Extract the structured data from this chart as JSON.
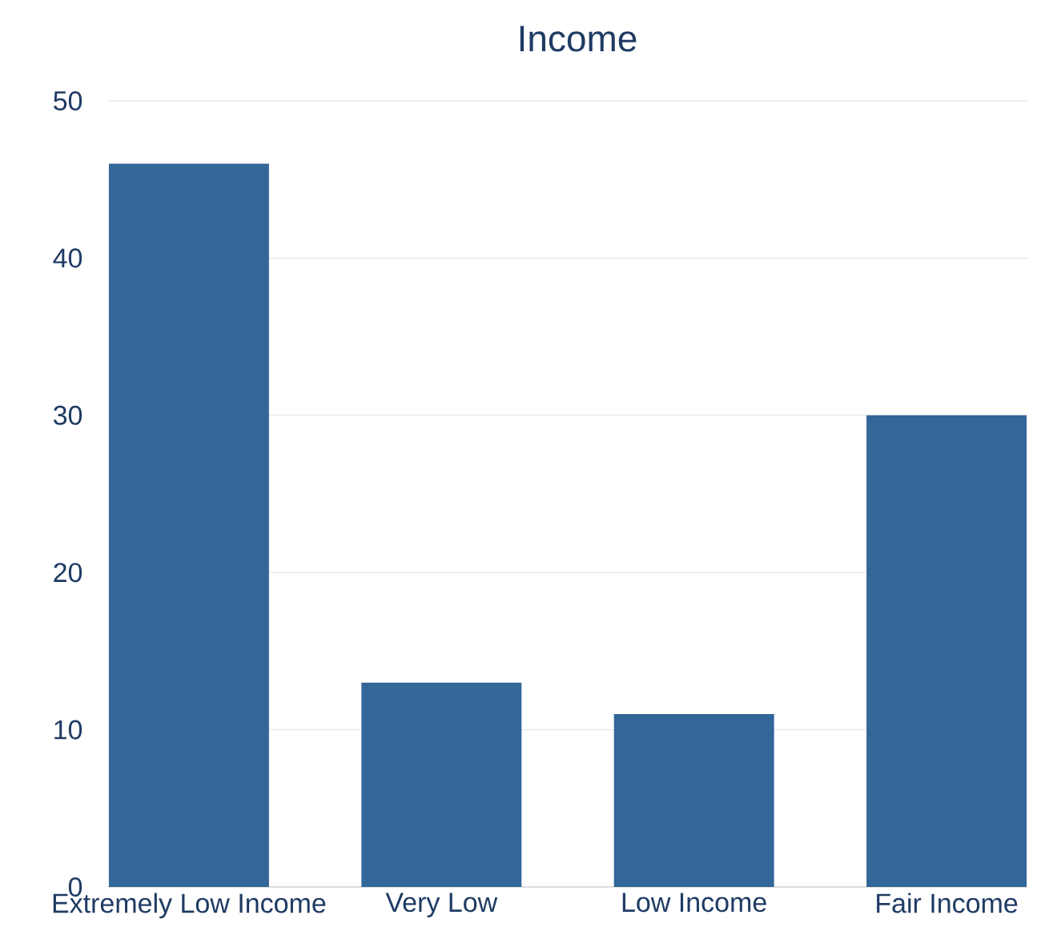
{
  "chart_data": {
    "type": "bar",
    "title": "Income",
    "categories": [
      "Extremely Low Income",
      "Very Low",
      "Low Income",
      "Fair Income"
    ],
    "values": [
      46,
      13,
      11,
      30
    ],
    "color": "#336699",
    "ylim": [
      0,
      50
    ],
    "yticks": [
      0,
      10,
      20,
      30,
      40,
      50
    ],
    "grid": "y"
  }
}
